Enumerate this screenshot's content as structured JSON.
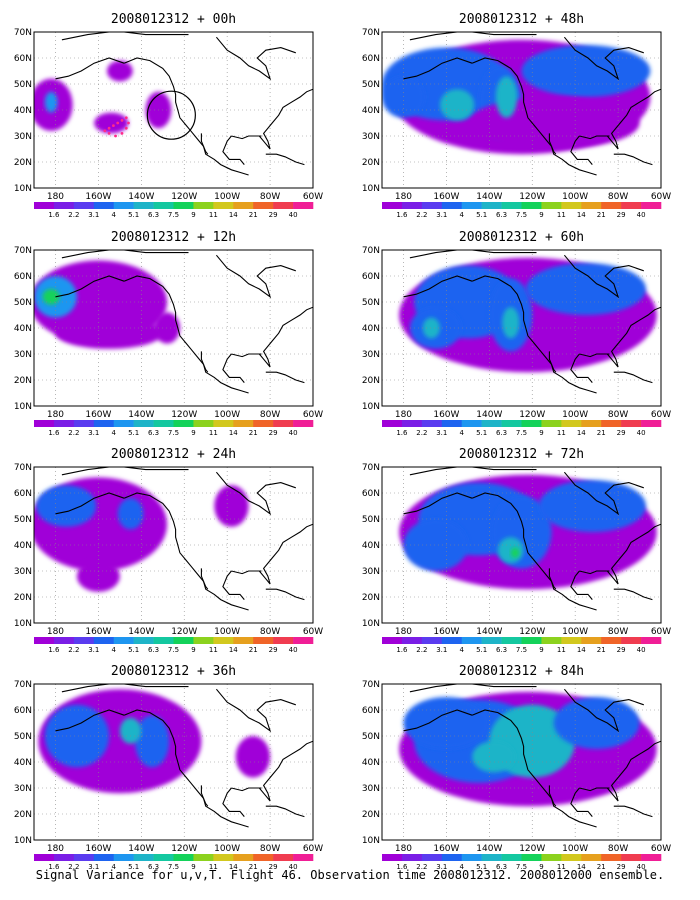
{
  "caption": "Signal Variance for u,v,T. Flight 46. Observation time 2008012312. 2008012000 ensemble.",
  "colorbar": {
    "labels": [
      "1.6",
      "2.2",
      "3.1",
      "4",
      "5.1",
      "6.3",
      "7.5",
      "9",
      "11",
      "14",
      "21",
      "29",
      "40"
    ],
    "colors": [
      "#a000d8",
      "#7a1ee6",
      "#5a3cf0",
      "#1e64f0",
      "#1e96f0",
      "#1eb4c8",
      "#14c8a0",
      "#14d25a",
      "#8cd21e",
      "#d2c81e",
      "#e6a01e",
      "#f06428",
      "#f03c50",
      "#f01e96"
    ]
  },
  "axes": {
    "lat_labels": [
      "70N",
      "60N",
      "50N",
      "40N",
      "30N",
      "20N",
      "10N"
    ],
    "lon_labels": [
      "180",
      "160W",
      "140W",
      "120W",
      "100W",
      "80W",
      "60W"
    ],
    "lat_range": [
      10,
      70
    ],
    "lon_range": [
      170,
      300
    ]
  },
  "panels": [
    {
      "title": "2008012312 + 00h"
    },
    {
      "title": "2008012312 + 48h"
    },
    {
      "title": "2008012312 + 12h"
    },
    {
      "title": "2008012312 + 60h"
    },
    {
      "title": "2008012312 + 24h"
    },
    {
      "title": "2008012312 + 72h"
    },
    {
      "title": "2008012312 + 36h"
    },
    {
      "title": "2008012312 + 84h"
    }
  ]
}
